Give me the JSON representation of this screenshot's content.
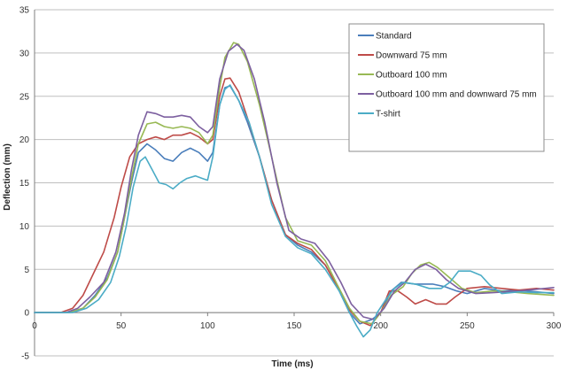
{
  "chart_data": {
    "type": "line",
    "title": "",
    "xlabel": "Time (ms)",
    "ylabel": "Deflection (mm)",
    "xlim": [
      0,
      300
    ],
    "ylim": [
      -5,
      35
    ],
    "xticks": [
      0,
      50,
      100,
      150,
      200,
      250,
      300
    ],
    "yticks": [
      -5,
      0,
      5,
      10,
      15,
      20,
      25,
      30,
      35
    ],
    "grid": "horizontal",
    "legend_position": "top-right",
    "series": [
      {
        "name": "Standard",
        "color": "#4a7ebb",
        "points": [
          [
            0,
            0
          ],
          [
            20,
            0
          ],
          [
            28,
            0.5
          ],
          [
            35,
            2
          ],
          [
            42,
            4
          ],
          [
            48,
            7
          ],
          [
            52,
            11
          ],
          [
            56,
            15
          ],
          [
            60,
            18.5
          ],
          [
            65,
            19.5
          ],
          [
            70,
            18.8
          ],
          [
            75,
            17.8
          ],
          [
            80,
            17.5
          ],
          [
            85,
            18.5
          ],
          [
            90,
            19
          ],
          [
            95,
            18.5
          ],
          [
            100,
            17.5
          ],
          [
            103,
            18.5
          ],
          [
            107,
            24
          ],
          [
            110,
            26
          ],
          [
            113,
            26.2
          ],
          [
            118,
            24.5
          ],
          [
            123,
            22
          ],
          [
            130,
            18
          ],
          [
            137,
            13
          ],
          [
            145,
            9
          ],
          [
            152,
            7.8
          ],
          [
            160,
            7
          ],
          [
            168,
            5.5
          ],
          [
            175,
            3
          ],
          [
            182,
            0
          ],
          [
            188,
            -1.3
          ],
          [
            195,
            -0.8
          ],
          [
            200,
            0
          ],
          [
            206,
            2.5
          ],
          [
            212,
            3.5
          ],
          [
            220,
            3.3
          ],
          [
            230,
            3.3
          ],
          [
            237,
            3
          ],
          [
            244,
            2.5
          ],
          [
            250,
            2.2
          ],
          [
            260,
            2.8
          ],
          [
            270,
            2.5
          ],
          [
            280,
            2.6
          ],
          [
            290,
            2.4
          ],
          [
            300,
            2.2
          ]
        ]
      },
      {
        "name": "Downward 75 mm",
        "color": "#be4b48",
        "points": [
          [
            0,
            0
          ],
          [
            15,
            0
          ],
          [
            22,
            0.5
          ],
          [
            28,
            2
          ],
          [
            34,
            4.5
          ],
          [
            40,
            7
          ],
          [
            46,
            11
          ],
          [
            50,
            14.5
          ],
          [
            55,
            18
          ],
          [
            60,
            19.5
          ],
          [
            65,
            20
          ],
          [
            70,
            20.3
          ],
          [
            75,
            20
          ],
          [
            80,
            20.5
          ],
          [
            85,
            20.5
          ],
          [
            90,
            20.8
          ],
          [
            95,
            20.3
          ],
          [
            100,
            19.5
          ],
          [
            103,
            20
          ],
          [
            107,
            25
          ],
          [
            110,
            27
          ],
          [
            113,
            27.1
          ],
          [
            118,
            25.5
          ],
          [
            123,
            22.5
          ],
          [
            130,
            18
          ],
          [
            137,
            13
          ],
          [
            145,
            9
          ],
          [
            152,
            8
          ],
          [
            160,
            7.3
          ],
          [
            168,
            5.5
          ],
          [
            175,
            3
          ],
          [
            182,
            0.3
          ],
          [
            188,
            -1
          ],
          [
            194,
            -1.5
          ],
          [
            200,
            0
          ],
          [
            205,
            2.5
          ],
          [
            210,
            2.5
          ],
          [
            215,
            1.8
          ],
          [
            220,
            1
          ],
          [
            226,
            1.5
          ],
          [
            232,
            1
          ],
          [
            238,
            1
          ],
          [
            243,
            1.8
          ],
          [
            250,
            2.8
          ],
          [
            260,
            3
          ],
          [
            270,
            2.8
          ],
          [
            280,
            2.6
          ],
          [
            290,
            2.8
          ],
          [
            300,
            2.6
          ]
        ]
      },
      {
        "name": "Outboard 100 mm",
        "color": "#98b954",
        "points": [
          [
            0,
            0
          ],
          [
            20,
            0
          ],
          [
            28,
            0.5
          ],
          [
            35,
            1.8
          ],
          [
            42,
            3.8
          ],
          [
            48,
            7
          ],
          [
            52,
            11
          ],
          [
            56,
            15.5
          ],
          [
            60,
            19.5
          ],
          [
            65,
            21.8
          ],
          [
            70,
            22
          ],
          [
            75,
            21.5
          ],
          [
            80,
            21.3
          ],
          [
            85,
            21.5
          ],
          [
            90,
            21.3
          ],
          [
            95,
            20.8
          ],
          [
            100,
            19.5
          ],
          [
            103,
            20.5
          ],
          [
            107,
            26
          ],
          [
            110,
            29.5
          ],
          [
            115,
            31.2
          ],
          [
            118,
            31
          ],
          [
            123,
            29
          ],
          [
            130,
            24
          ],
          [
            137,
            18
          ],
          [
            145,
            11
          ],
          [
            152,
            8.3
          ],
          [
            160,
            7.8
          ],
          [
            168,
            6
          ],
          [
            175,
            3.2
          ],
          [
            182,
            0.5
          ],
          [
            188,
            -1
          ],
          [
            195,
            -1.3
          ],
          [
            200,
            0
          ],
          [
            206,
            2
          ],
          [
            213,
            3
          ],
          [
            218,
            4.5
          ],
          [
            223,
            5.5
          ],
          [
            228,
            5.8
          ],
          [
            233,
            5.2
          ],
          [
            240,
            4
          ],
          [
            247,
            2.8
          ],
          [
            255,
            2.3
          ],
          [
            265,
            2.5
          ],
          [
            275,
            2.4
          ],
          [
            285,
            2.2
          ],
          [
            300,
            2
          ]
        ]
      },
      {
        "name": "Outboard 100 mm and downward 75 mm",
        "color": "#7d60a0",
        "points": [
          [
            0,
            0
          ],
          [
            18,
            0
          ],
          [
            25,
            0.5
          ],
          [
            32,
            1.8
          ],
          [
            40,
            3.5
          ],
          [
            47,
            7
          ],
          [
            52,
            11.5
          ],
          [
            56,
            16.5
          ],
          [
            60,
            20.5
          ],
          [
            65,
            23.2
          ],
          [
            70,
            23
          ],
          [
            75,
            22.6
          ],
          [
            80,
            22.6
          ],
          [
            85,
            22.8
          ],
          [
            90,
            22.6
          ],
          [
            95,
            21.5
          ],
          [
            100,
            20.8
          ],
          [
            103,
            21.5
          ],
          [
            107,
            27
          ],
          [
            112,
            30.2
          ],
          [
            117,
            31
          ],
          [
            121,
            30.3
          ],
          [
            127,
            27
          ],
          [
            133,
            22
          ],
          [
            140,
            15
          ],
          [
            147,
            9.5
          ],
          [
            154,
            8.5
          ],
          [
            162,
            8
          ],
          [
            170,
            6
          ],
          [
            177,
            3.5
          ],
          [
            183,
            1
          ],
          [
            190,
            -0.5
          ],
          [
            196,
            -0.8
          ],
          [
            202,
            0.5
          ],
          [
            208,
            2.5
          ],
          [
            214,
            3.5
          ],
          [
            220,
            5
          ],
          [
            226,
            5.6
          ],
          [
            232,
            5
          ],
          [
            238,
            3.8
          ],
          [
            245,
            2.8
          ],
          [
            255,
            2.2
          ],
          [
            265,
            2.3
          ],
          [
            280,
            2.5
          ],
          [
            295,
            2.8
          ],
          [
            300,
            2.9
          ]
        ]
      },
      {
        "name": "T-shirt",
        "color": "#4bacc6",
        "points": [
          [
            0,
            0
          ],
          [
            22,
            0
          ],
          [
            30,
            0.5
          ],
          [
            37,
            1.5
          ],
          [
            44,
            3.5
          ],
          [
            49,
            6.5
          ],
          [
            53,
            10
          ],
          [
            57,
            14.5
          ],
          [
            61,
            17.5
          ],
          [
            64,
            18
          ],
          [
            68,
            16.5
          ],
          [
            72,
            15
          ],
          [
            76,
            14.8
          ],
          [
            80,
            14.3
          ],
          [
            84,
            15
          ],
          [
            88,
            15.5
          ],
          [
            93,
            15.8
          ],
          [
            97,
            15.5
          ],
          [
            100,
            15.3
          ],
          [
            103,
            18
          ],
          [
            107,
            24
          ],
          [
            110,
            25.8
          ],
          [
            113,
            26.3
          ],
          [
            118,
            24.5
          ],
          [
            124,
            22
          ],
          [
            130,
            18
          ],
          [
            137,
            12.5
          ],
          [
            145,
            8.8
          ],
          [
            152,
            7.5
          ],
          [
            160,
            6.8
          ],
          [
            168,
            5
          ],
          [
            176,
            2.5
          ],
          [
            182,
            0
          ],
          [
            186,
            -1.5
          ],
          [
            190,
            -2.8
          ],
          [
            194,
            -2
          ],
          [
            198,
            0
          ],
          [
            203,
            1.5
          ],
          [
            208,
            2.8
          ],
          [
            213,
            3.5
          ],
          [
            220,
            3.3
          ],
          [
            228,
            2.8
          ],
          [
            235,
            2.8
          ],
          [
            240,
            3.5
          ],
          [
            245,
            4.8
          ],
          [
            252,
            4.8
          ],
          [
            258,
            4.3
          ],
          [
            263,
            3.2
          ],
          [
            270,
            2.2
          ],
          [
            280,
            2.4
          ],
          [
            290,
            2.3
          ],
          [
            300,
            2.3
          ]
        ]
      }
    ]
  }
}
